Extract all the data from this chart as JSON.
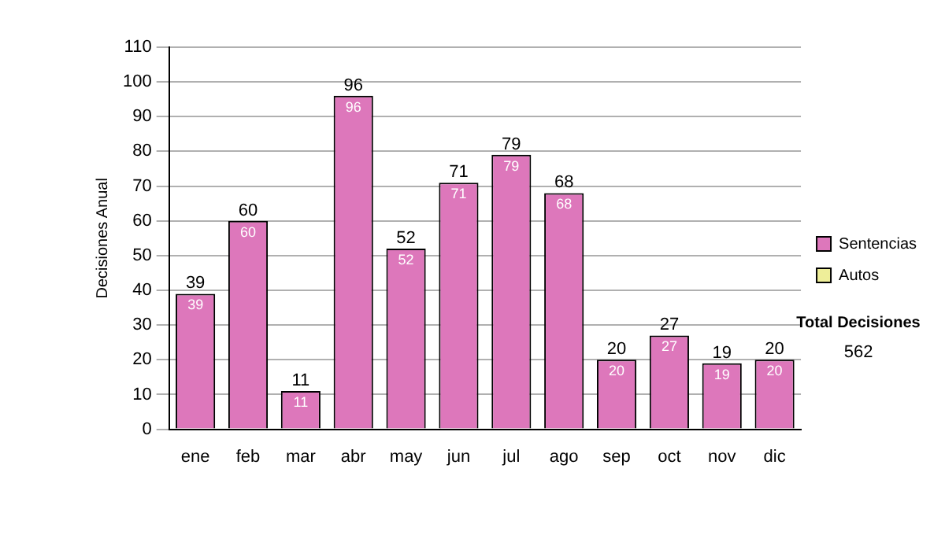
{
  "chart_data": {
    "type": "bar",
    "ylabel": "Decisiones Anual",
    "categories": [
      "ene",
      "feb",
      "mar",
      "abr",
      "may",
      "jun",
      "jul",
      "ago",
      "sep",
      "oct",
      "nov",
      "dic"
    ],
    "series": [
      {
        "name": "Sentencias",
        "color": "#dd77bb",
        "values": [
          39,
          60,
          11,
          96,
          52,
          71,
          79,
          68,
          20,
          27,
          19,
          20
        ],
        "value_labels": [
          "39",
          "60",
          "11",
          "96",
          "52",
          "71",
          "79",
          "68",
          "20",
          "27",
          "19",
          "20"
        ]
      },
      {
        "name": "Autos",
        "color": "#eeee99",
        "values": [
          0,
          0,
          0,
          0,
          0,
          0,
          0,
          0,
          0,
          0,
          0,
          0
        ],
        "value_labels": [
          null,
          null,
          null,
          null,
          null,
          null,
          null,
          null,
          null,
          null,
          null,
          null
        ]
      }
    ],
    "ylim": [
      0,
      110
    ],
    "yticks": [
      0,
      10,
      20,
      30,
      40,
      50,
      60,
      70,
      80,
      90,
      100,
      110
    ],
    "grid": "y",
    "legend": "right",
    "annotations": [
      "Total Decisiones",
      "562",
      {
        "text": "39",
        "x": "ene",
        "y": 39
      },
      {
        "text": "60",
        "x": "feb",
        "y": 60
      },
      {
        "text": "11",
        "x": "mar",
        "y": 11
      },
      {
        "text": "96",
        "x": "abr",
        "y": 96
      },
      {
        "text": "52",
        "x": "may",
        "y": 52
      },
      {
        "text": "71",
        "x": "jun",
        "y": 71
      },
      {
        "text": "79",
        "x": "jul",
        "y": 79
      },
      {
        "text": "68",
        "x": "ago",
        "y": 68
      },
      {
        "text": "20",
        "x": "sep",
        "y": 20
      },
      {
        "text": "27",
        "x": "oct",
        "y": 27
      },
      {
        "text": "19",
        "x": "nov",
        "y": 19
      },
      {
        "text": "20",
        "x": "dic",
        "y": 20
      }
    ]
  }
}
